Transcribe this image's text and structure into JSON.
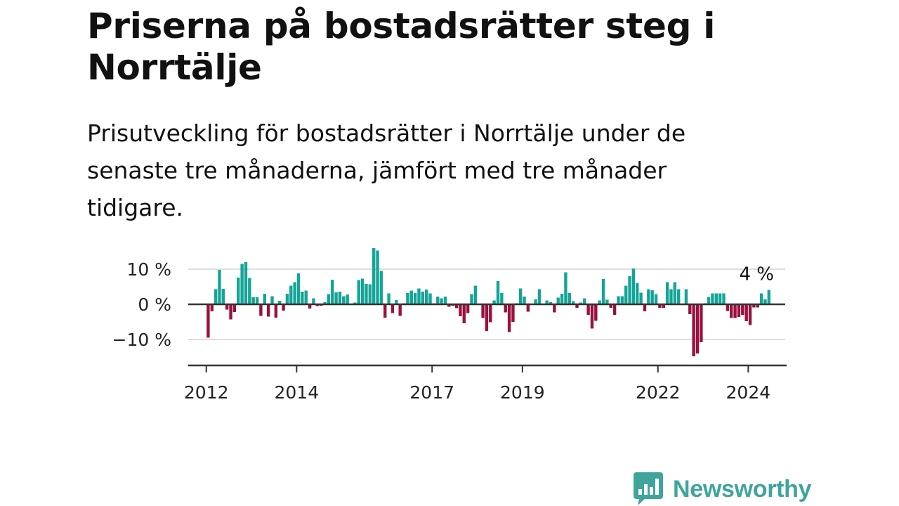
{
  "header": {
    "title": "Priserna på bostadsrätter steg i Norrtälje",
    "subtitle": "Prisutveckling för bostadsrätter i Norrtälje under de senaste tre månaderna, jämfört med tre månader tidigare."
  },
  "logo": {
    "text": "Newsworthy",
    "icon": "chart-bubble-icon"
  },
  "colors": {
    "positive": "#13a597",
    "negative": "#9a1040",
    "brand": "#3fa59c",
    "grid": "#dddddd",
    "axis": "#333333"
  },
  "chart_data": {
    "type": "bar",
    "unit": "%",
    "y_ticks": [
      {
        "value": 10,
        "label": "10 %"
      },
      {
        "value": 0,
        "label": "0 %"
      },
      {
        "value": -10,
        "label": "−10 %"
      }
    ],
    "ylim": [
      -17.5,
      17.5
    ],
    "x_ticks": [
      {
        "value": 2012.0,
        "label": "2012"
      },
      {
        "value": 2014.0,
        "label": "2014"
      },
      {
        "value": 2017.0,
        "label": "2017"
      },
      {
        "value": 2019.0,
        "label": "2019"
      },
      {
        "value": 2022.0,
        "label": "2022"
      },
      {
        "value": 2024.0,
        "label": "2024"
      }
    ],
    "xlim": [
      2011.6,
      2024.85
    ],
    "start": "2012-01",
    "end_label": "4 %",
    "values": [
      -9.5,
      -2,
      4.3,
      9.8,
      4.4,
      -1.5,
      -4.3,
      -2.2,
      7.6,
      11.5,
      12,
      7.5,
      2,
      2,
      -3.3,
      3,
      -3.5,
      2.3,
      -3.8,
      1,
      -1.8,
      3,
      5.3,
      6.3,
      8.8,
      3.6,
      3.9,
      -1.2,
      1.7,
      -0.5,
      -0.4,
      0.6,
      2.9,
      7,
      3.4,
      3.6,
      2.3,
      2.8,
      0.2,
      0.5,
      6.9,
      7.3,
      5.8,
      5.7,
      16,
      15.3,
      9.5,
      -3.8,
      3.1,
      -2.5,
      1.2,
      -3.3,
      0.3,
      3.2,
      3.9,
      3.2,
      4.5,
      3.6,
      4.2,
      3.1,
      0.3,
      2.2,
      1.7,
      2.2,
      -0.7,
      -0.4,
      -1.1,
      -3.4,
      -5.4,
      -2.5,
      2.9,
      5.3,
      0.1,
      -3.9,
      -7.6,
      -5.1,
      1.1,
      6.6,
      3.2,
      -2.3,
      -7.9,
      -5,
      0.3,
      4.5,
      2.2,
      -2.1,
      0.2,
      1.4,
      4.3,
      0,
      1.1,
      0.6,
      -2.3,
      1.9,
      3,
      9.1,
      3.2,
      0.9,
      -1,
      0.5,
      1.7,
      -3,
      -6.9,
      -4.7,
      1.1,
      7.2,
      1.3,
      -1,
      -3,
      2.3,
      2.3,
      5.3,
      8,
      10.2,
      6,
      3.3,
      -2,
      4.3,
      4,
      2.9,
      -1,
      -1,
      6.3,
      4.3,
      6.3,
      4.3,
      -0.2,
      4.3,
      -2.8,
      -14.8,
      -14,
      -10.8,
      0.3,
      2.1,
      3.1,
      3.1,
      3.1,
      3.1,
      -1.9,
      -3.9,
      -3.9,
      -3.6,
      -3,
      -4.8,
      -5.9,
      -0.9,
      -0.9,
      3.1,
      1.4,
      4.1
    ]
  }
}
